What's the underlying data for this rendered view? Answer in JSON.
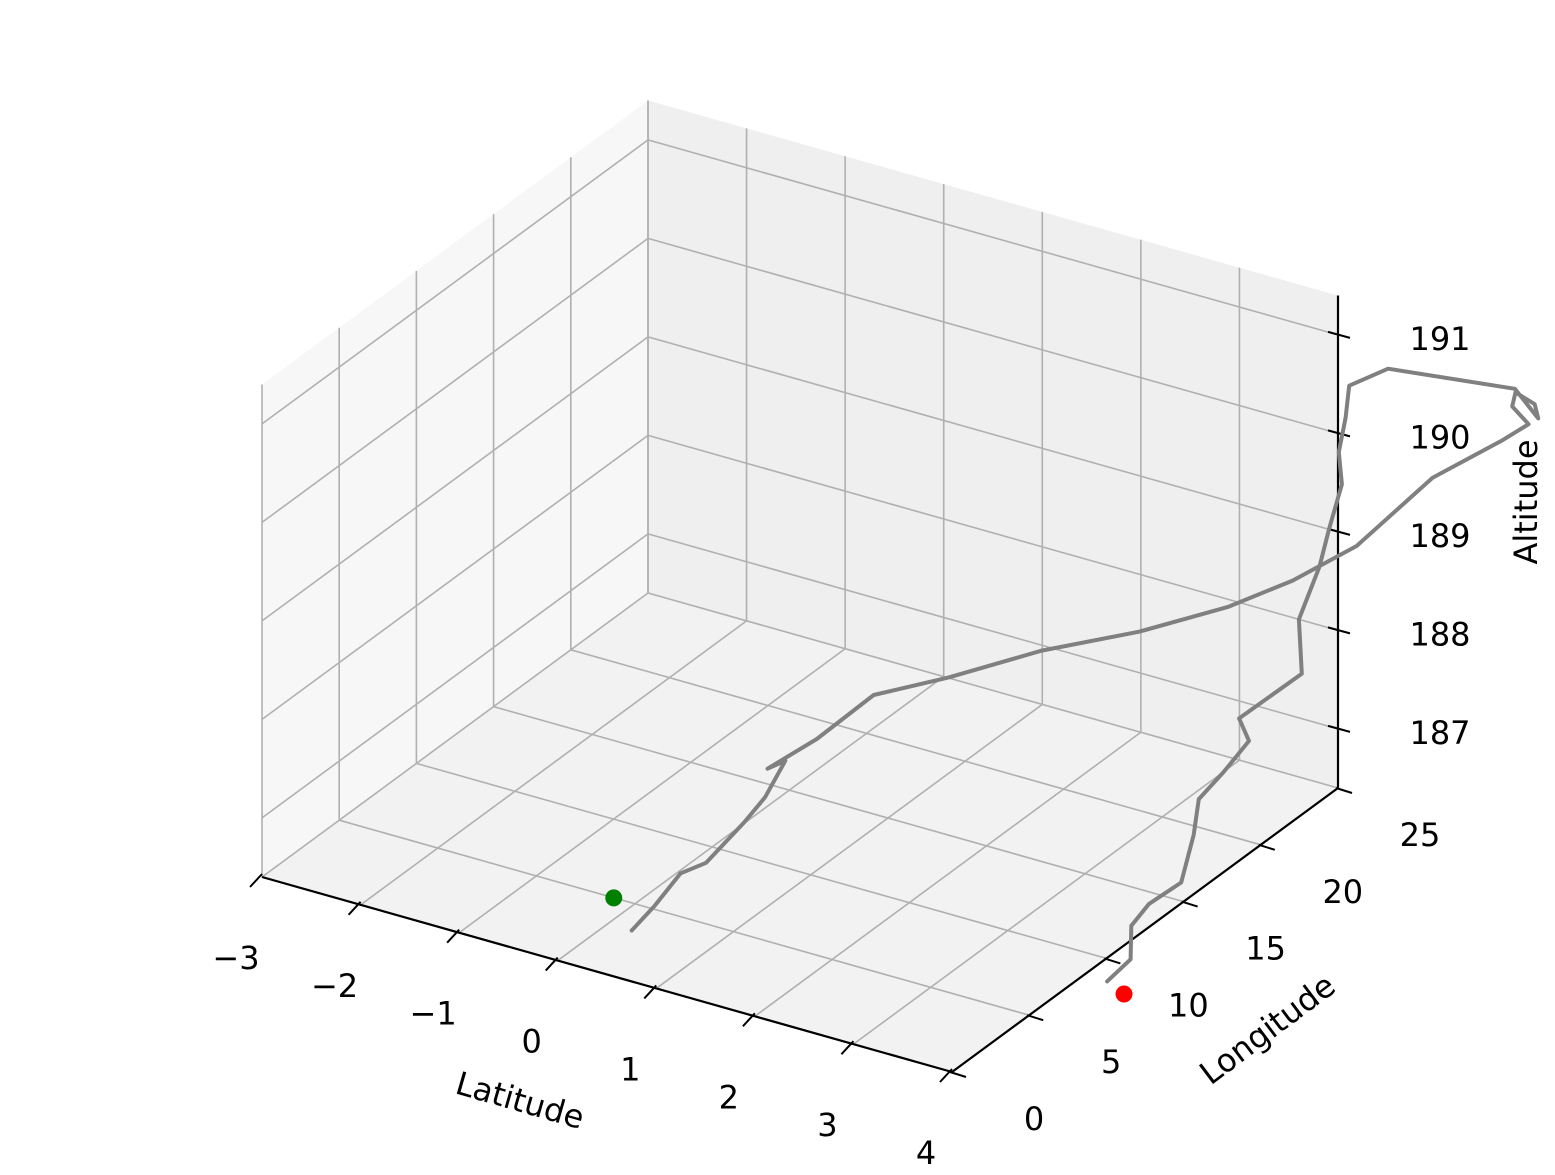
{
  "chart_data": {
    "type": "line3d",
    "xlabel": "Latitude",
    "ylabel": "Longitude",
    "zlabel": "Altitude",
    "xlim": [
      -3,
      4
    ],
    "ylim": [
      0,
      25
    ],
    "zlim": [
      186.4,
      191.4
    ],
    "xticks": [
      -3,
      -2,
      -1,
      0,
      1,
      2,
      3,
      4
    ],
    "yticks": [
      0,
      5,
      10,
      15,
      20,
      25
    ],
    "zticks": [
      187,
      188,
      189,
      190,
      191
    ],
    "xtick_labels": [
      "−3",
      "−2",
      "−1",
      "0",
      "1",
      "2",
      "3",
      "4"
    ],
    "ytick_labels": [
      "0",
      "5",
      "10",
      "15",
      "20",
      "25"
    ],
    "ztick_labels": [
      "187",
      "188",
      "189",
      "190",
      "191"
    ],
    "grid": true,
    "colors": {
      "track": "#808080",
      "start": "#008000",
      "end": "#ff0000",
      "pane": "#f2f2f2",
      "grid": "#b0b0b0"
    },
    "series": [
      {
        "kind": "track",
        "x": [
          0.39,
          0.51,
          0.62,
          0.8,
          0.97,
          1.07,
          1.15,
          1.0,
          1.36,
          1.78,
          2.4,
          3.11,
          3.83,
          4.43,
          4.84,
          5.16,
          5.43,
          5.86,
          6.09,
          5.94,
          6.02,
          6.23,
          6.25,
          6.03,
          4.9,
          4.49,
          4.39,
          4.29,
          4.29,
          4.3,
          4.36,
          4.34,
          4.51,
          4.25,
          4.35,
          4.23,
          4.17,
          4.29,
          4.43,
          4.26,
          4.3,
          4.48,
          4.43
        ],
        "y": [
          2.3,
          3.0,
          4.0,
          4.5,
          5.9,
          6.6,
          7.4,
          7.2,
          8.1,
          9.1,
          10.0,
          11.5,
          13.2,
          15.1,
          16.7,
          18.8,
          22.0,
          23.7,
          24.0,
          23.9,
          23.6,
          23.5,
          23.6,
          23.5,
          22.5,
          22.6,
          23.0,
          23.2,
          23.4,
          22.5,
          21.5,
          20.3,
          19.4,
          17.0,
          17.0,
          16.1,
          14.9,
          13.8,
          12.1,
          11.1,
          9.7,
          8.5,
          7.3
        ],
        "z": [
          186.55,
          186.75,
          187.0,
          187.1,
          187.4,
          187.6,
          187.9,
          187.8,
          188.1,
          188.55,
          188.8,
          189.1,
          189.3,
          189.5,
          189.7,
          189.9,
          190.3,
          190.6,
          190.8,
          190.95,
          191.15,
          191.1,
          190.95,
          191.2,
          191.2,
          190.9,
          190.5,
          190.1,
          189.75,
          189.4,
          189.15,
          188.75,
          188.35,
          188.1,
          187.9,
          187.65,
          187.5,
          187.3,
          187.05,
          186.9,
          186.85,
          186.7,
          186.6
        ]
      },
      {
        "kind": "start",
        "x": [
          0.13
        ],
        "y": [
          2.8
        ],
        "z": [
          186.75
        ]
      },
      {
        "kind": "end",
        "x": [
          4.68
        ],
        "y": [
          6.8
        ],
        "z": [
          186.6
        ]
      }
    ]
  }
}
